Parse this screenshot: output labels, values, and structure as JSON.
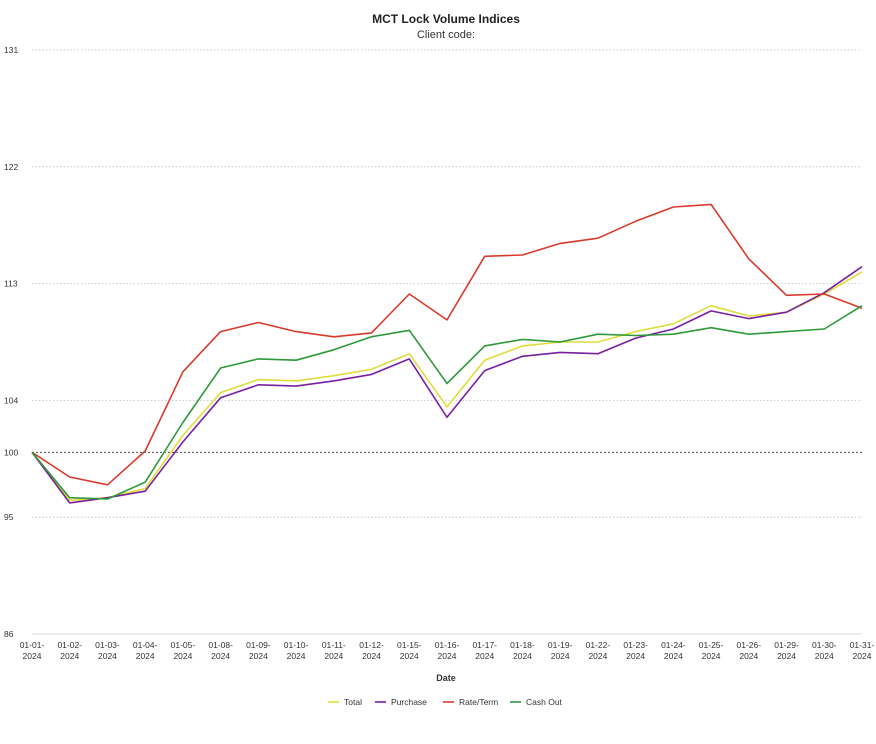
{
  "chart_data": {
    "type": "line",
    "title": "MCT Lock Volume Indices",
    "subtitle": "Client code:",
    "xlabel": "Date",
    "ylabel": "",
    "ylim": [
      86,
      131
    ],
    "yticks": [
      86,
      95,
      100,
      104,
      113,
      122,
      131
    ],
    "baseline": 100,
    "grid": true,
    "legend_position": "bottom-center",
    "categories": [
      "01-01-2024",
      "01-02-2024",
      "01-03-2024",
      "01-04-2024",
      "01-05-2024",
      "01-08-2024",
      "01-09-2024",
      "01-10-2024",
      "01-11-2024",
      "01-12-2024",
      "01-15-2024",
      "01-16-2024",
      "01-17-2024",
      "01-18-2024",
      "01-19-2024",
      "01-22-2024",
      "01-23-2024",
      "01-24-2024",
      "01-25-2024",
      "01-26-2024",
      "01-29-2024",
      "01-30-2024",
      "01-31-2024"
    ],
    "series": [
      {
        "name": "Total",
        "color": "#e0dc3c",
        "values": [
          100,
          96.3,
          96.5,
          97.2,
          101.3,
          104.6,
          105.6,
          105.5,
          105.9,
          106.4,
          107.6,
          103.5,
          107.1,
          108.2,
          108.5,
          108.5,
          109.3,
          109.9,
          111.3,
          110.5,
          110.8,
          112.2,
          113.9
        ]
      },
      {
        "name": "Purchase",
        "color": "#7b1fa2",
        "values": [
          100,
          96.1,
          96.5,
          97.0,
          100.8,
          104.2,
          105.2,
          105.1,
          105.5,
          106.0,
          107.2,
          102.7,
          106.3,
          107.4,
          107.7,
          107.6,
          108.8,
          109.5,
          110.9,
          110.3,
          110.8,
          112.3,
          114.3
        ]
      },
      {
        "name": "Rate/Term",
        "color": "#d93a2b",
        "values": [
          100,
          98.1,
          97.5,
          100.1,
          106.2,
          109.3,
          110.0,
          109.3,
          108.9,
          109.2,
          112.2,
          110.2,
          115.1,
          115.2,
          116.1,
          116.5,
          117.8,
          118.9,
          119.1,
          114.9,
          112.1,
          112.2,
          111.1
        ]
      },
      {
        "name": "Cash Out",
        "color": "#2e9a3a",
        "values": [
          100,
          96.5,
          96.4,
          97.7,
          102.3,
          106.5,
          107.2,
          107.1,
          107.9,
          108.9,
          109.4,
          105.3,
          108.2,
          108.7,
          108.5,
          109.1,
          109.0,
          109.1,
          109.6,
          109.1,
          109.3,
          109.5,
          111.3
        ]
      }
    ]
  }
}
